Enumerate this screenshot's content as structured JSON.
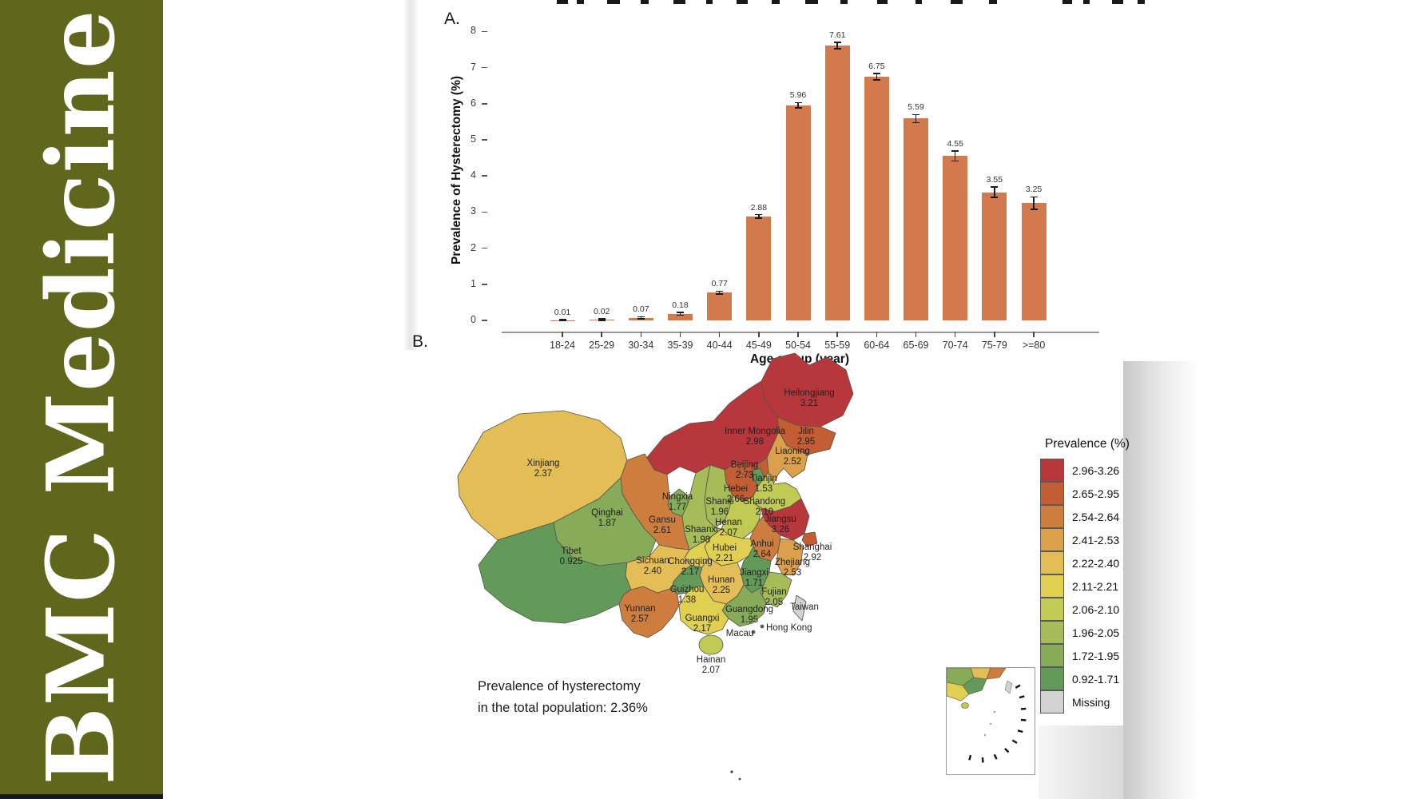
{
  "branding": {
    "journal_name": "BMC Medicine",
    "sidebar_color": "#5e671c",
    "footer_strip_color": "#161a20"
  },
  "figure": {
    "panel_a_label": "A.",
    "panel_b_label": "B.",
    "caption_line1": "Prevalence of hysterectomy",
    "caption_line2": "in the total population: 2.36%"
  },
  "chart_data": [
    {
      "type": "bar",
      "title": "",
      "xlabel": "Age group (year)",
      "ylabel": "Prevalence of Hysterectomy (%)",
      "categories": [
        "18-24",
        "25-29",
        "30-34",
        "35-39",
        "40-44",
        "45-49",
        "50-54",
        "55-59",
        "60-64",
        "65-69",
        "70-74",
        "75-79",
        ">=80"
      ],
      "values": [
        0.01,
        0.02,
        0.07,
        0.18,
        0.77,
        2.88,
        5.96,
        7.61,
        6.75,
        5.59,
        4.55,
        3.55,
        3.25
      ],
      "errors": [
        0.02,
        0.02,
        0.03,
        0.04,
        0.04,
        0.05,
        0.07,
        0.09,
        0.09,
        0.11,
        0.14,
        0.14,
        0.17
      ],
      "ylim": [
        0,
        8
      ],
      "yticks": [
        0,
        1,
        2,
        3,
        4,
        5,
        6,
        7,
        8
      ],
      "bar_color": "#d2794e",
      "grid": false,
      "legend_position": "none"
    },
    {
      "type": "heatmap",
      "subtype": "choropleth-china-provinces",
      "legend_title": "Prevalence (%)",
      "legend_bins": [
        {
          "label": "2.96-3.26",
          "color": "#b8373c"
        },
        {
          "label": "2.65-2.95",
          "color": "#c35d33"
        },
        {
          "label": "2.54-2.64",
          "color": "#cd7d3e"
        },
        {
          "label": "2.41-2.53",
          "color": "#dba04b"
        },
        {
          "label": "2.22-2.40",
          "color": "#e3bd55"
        },
        {
          "label": "2.11-2.21",
          "color": "#e0d051"
        },
        {
          "label": "2.06-2.10",
          "color": "#c2ca56"
        },
        {
          "label": "1.96-2.05",
          "color": "#a5bc59"
        },
        {
          "label": "1.72-1.95",
          "color": "#86ab59"
        },
        {
          "label": "0.92-1.71",
          "color": "#649a59"
        },
        {
          "label": "Missing",
          "color": "#d2d2d2"
        }
      ],
      "regions": [
        {
          "name": "Heilongjiang",
          "value": "3.21",
          "bin": 0
        },
        {
          "name": "Inner Mongolia",
          "value": "2.98",
          "bin": 0
        },
        {
          "name": "Jilin",
          "value": "2.95",
          "bin": 1
        },
        {
          "name": "Liaoning",
          "value": "2.52",
          "bin": 3
        },
        {
          "name": "Beijing",
          "value": "2.73",
          "bin": 1
        },
        {
          "name": "Tianjin",
          "value": "1.53",
          "bin": 9
        },
        {
          "name": "Hebei",
          "value": "2.66",
          "bin": 1
        },
        {
          "name": "Shanxi",
          "value": "1.96",
          "bin": 7
        },
        {
          "name": "Shandong",
          "value": "2.10",
          "bin": 6
        },
        {
          "name": "Henan",
          "value": "2.07",
          "bin": 6
        },
        {
          "name": "Jiangsu",
          "value": "3.26",
          "bin": 0
        },
        {
          "name": "Shanghai",
          "value": "2.92",
          "bin": 1
        },
        {
          "name": "Anhui",
          "value": "2.64",
          "bin": 2
        },
        {
          "name": "Zhejiang",
          "value": "2.53",
          "bin": 3
        },
        {
          "name": "Hubei",
          "value": "2.21",
          "bin": 5
        },
        {
          "name": "Jiangxi",
          "value": "1.71",
          "bin": 9
        },
        {
          "name": "Hunan",
          "value": "2.25",
          "bin": 4
        },
        {
          "name": "Fujian",
          "value": "2.05",
          "bin": 7
        },
        {
          "name": "Guangdong",
          "value": "1.95",
          "bin": 8
        },
        {
          "name": "Guangxi",
          "value": "2.17",
          "bin": 5
        },
        {
          "name": "Guizhou",
          "value": "1.38",
          "bin": 9
        },
        {
          "name": "Hainan",
          "value": "2.07",
          "bin": 6
        },
        {
          "name": "Yunnan",
          "value": "2.57",
          "bin": 2
        },
        {
          "name": "Sichuan",
          "value": "2.40",
          "bin": 4
        },
        {
          "name": "Chongqing",
          "value": "2.17",
          "bin": 5
        },
        {
          "name": "Shaanxi",
          "value": "1.98",
          "bin": 7
        },
        {
          "name": "Gansu",
          "value": "2.61",
          "bin": 2
        },
        {
          "name": "Ningxia",
          "value": "1.77",
          "bin": 8
        },
        {
          "name": "Qinghai",
          "value": "1.87",
          "bin": 8
        },
        {
          "name": "Xinjiang",
          "value": "2.37",
          "bin": 4
        },
        {
          "name": "Tibet",
          "value": "0.925",
          "bin": 9
        },
        {
          "name": "Taiwan",
          "value": "",
          "bin": 10
        },
        {
          "name": "Hong Kong",
          "value": "",
          "bin": 10
        },
        {
          "name": "Macau",
          "value": "",
          "bin": 10
        }
      ],
      "annotation": "Prevalence of hysterectomy in the total population: 2.36%"
    }
  ]
}
